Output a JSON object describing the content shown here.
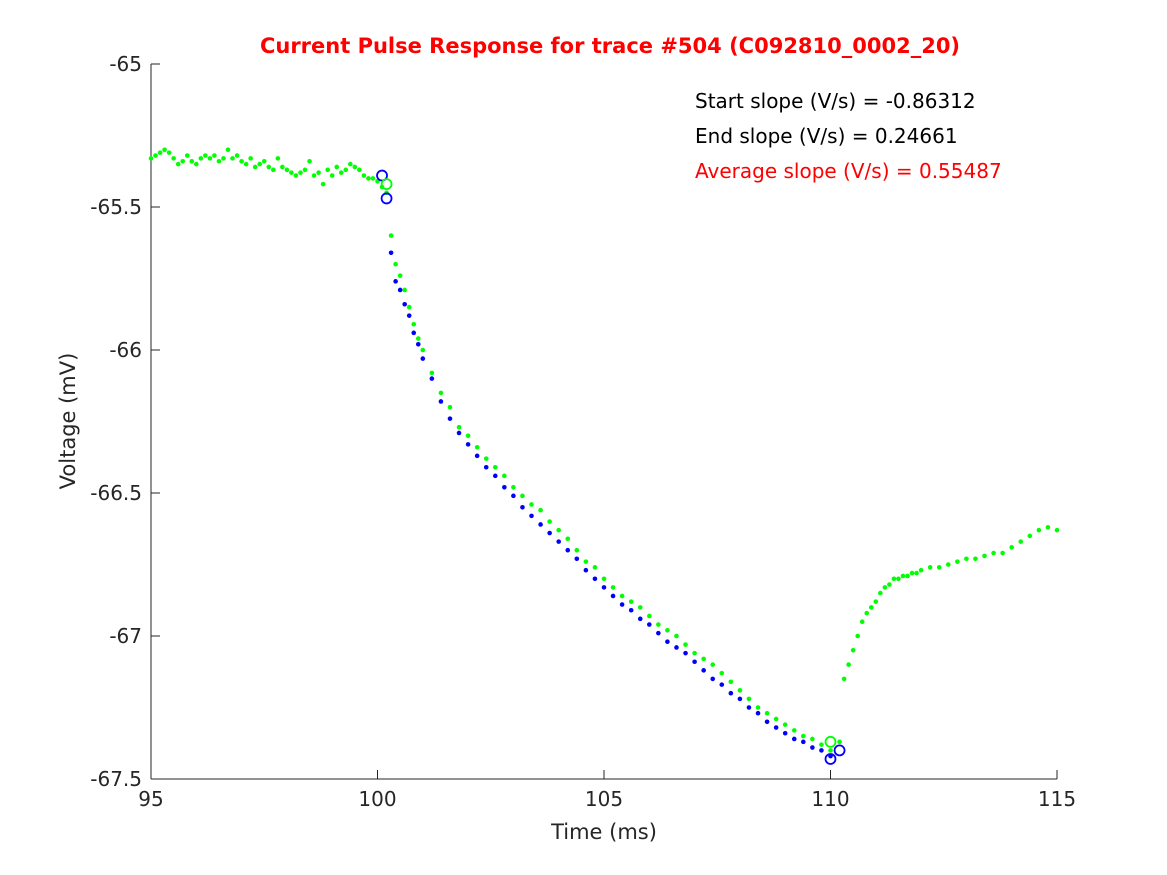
{
  "chart_data": {
    "type": "scatter",
    "title": "Current Pulse Response for trace #504 (C092810_0002_20)",
    "xlabel": "Time (ms)",
    "ylabel": "Voltage (mV)",
    "xlim": [
      95,
      115
    ],
    "ylim": [
      -67.5,
      -65
    ],
    "xticks": [
      95,
      100,
      105,
      110,
      115
    ],
    "yticks": [
      -65,
      -65.5,
      -66,
      -66.5,
      -67,
      -67.5
    ],
    "xtick_labels": [
      "95",
      "100",
      "105",
      "110",
      "115"
    ],
    "ytick_labels": [
      "-65",
      "-65.5",
      "-66",
      "-66.5",
      "-67",
      "-67.5"
    ],
    "grid": false,
    "colors": {
      "green": "#00ff00",
      "blue": "#0000ff",
      "axis": "#262626",
      "title": "#ff0000",
      "annotation_black": "#000000",
      "annotation_red": "#ff0000"
    },
    "annotations": [
      {
        "text": "Start slope (V/s) = -0.86312",
        "color": "#000000"
      },
      {
        "text": "End slope (V/s) = 0.24661",
        "color": "#000000"
      },
      {
        "text": "Average slope (V/s) = 0.55487",
        "color": "#ff0000"
      }
    ],
    "series": [
      {
        "color": "#00ff00",
        "marker": "dot",
        "x": [
          95.0,
          95.1,
          95.2,
          95.3,
          95.4,
          95.5,
          95.6,
          95.7,
          95.8,
          95.9,
          96.0,
          96.1,
          96.2,
          96.3,
          96.4,
          96.5,
          96.6,
          96.7,
          96.8,
          96.9,
          97.0,
          97.1,
          97.2,
          97.3,
          97.4,
          97.5,
          97.6,
          97.7,
          97.8,
          97.9,
          98.0,
          98.1,
          98.2,
          98.3,
          98.4,
          98.5,
          98.6,
          98.7,
          98.8,
          98.9,
          99.0,
          99.1,
          99.2,
          99.3,
          99.4,
          99.5,
          99.6,
          99.7,
          99.8,
          99.9,
          100.0,
          100.1,
          100.2,
          100.3,
          100.4,
          100.5,
          100.6,
          100.7,
          100.8,
          100.9,
          101.0,
          101.2,
          101.4,
          101.6,
          101.8,
          102.0,
          102.2,
          102.4,
          102.6,
          102.8,
          103.0,
          103.2,
          103.4,
          103.6,
          103.8,
          104.0,
          104.2,
          104.4,
          104.6,
          104.8,
          105.0,
          105.2,
          105.4,
          105.6,
          105.8,
          106.0,
          106.2,
          106.4,
          106.6,
          106.8,
          107.0,
          107.2,
          107.4,
          107.6,
          107.8,
          108.0,
          108.2,
          108.4,
          108.6,
          108.8,
          109.0,
          109.2,
          109.4,
          109.6,
          109.8,
          110.0,
          110.2,
          110.3,
          110.4,
          110.5,
          110.6,
          110.7,
          110.8,
          110.9,
          111.0,
          111.1,
          111.2,
          111.3,
          111.4,
          111.5,
          111.6,
          111.7,
          111.8,
          111.9,
          112.0,
          112.2,
          112.4,
          112.6,
          112.8,
          113.0,
          113.2,
          113.4,
          113.6,
          113.8,
          114.0,
          114.2,
          114.4,
          114.6,
          114.8,
          115.0
        ],
        "y": [
          -65.33,
          -65.32,
          -65.31,
          -65.3,
          -65.31,
          -65.33,
          -65.35,
          -65.34,
          -65.32,
          -65.34,
          -65.35,
          -65.33,
          -65.32,
          -65.33,
          -65.32,
          -65.34,
          -65.33,
          -65.3,
          -65.33,
          -65.32,
          -65.34,
          -65.35,
          -65.33,
          -65.36,
          -65.35,
          -65.34,
          -65.36,
          -65.37,
          -65.33,
          -65.36,
          -65.37,
          -65.38,
          -65.39,
          -65.38,
          -65.37,
          -65.34,
          -65.39,
          -65.38,
          -65.42,
          -65.37,
          -65.39,
          -65.36,
          -65.38,
          -65.37,
          -65.35,
          -65.36,
          -65.37,
          -65.39,
          -65.4,
          -65.4,
          -65.41,
          -65.43,
          -65.45,
          -65.6,
          -65.7,
          -65.74,
          -65.79,
          -65.85,
          -65.91,
          -65.96,
          -66.0,
          -66.08,
          -66.15,
          -66.2,
          -66.27,
          -66.3,
          -66.34,
          -66.38,
          -66.41,
          -66.44,
          -66.48,
          -66.51,
          -66.54,
          -66.56,
          -66.6,
          -66.63,
          -66.66,
          -66.7,
          -66.74,
          -66.76,
          -66.8,
          -66.83,
          -66.86,
          -66.88,
          -66.9,
          -66.93,
          -66.96,
          -66.98,
          -67.0,
          -67.03,
          -67.06,
          -67.08,
          -67.1,
          -67.13,
          -67.16,
          -67.19,
          -67.22,
          -67.25,
          -67.27,
          -67.29,
          -67.31,
          -67.33,
          -67.35,
          -67.36,
          -67.38,
          -67.4,
          -67.37,
          -67.15,
          -67.1,
          -67.05,
          -67.0,
          -66.95,
          -66.92,
          -66.9,
          -66.88,
          -66.85,
          -66.83,
          -66.82,
          -66.8,
          -66.8,
          -66.79,
          -66.79,
          -66.78,
          -66.78,
          -66.77,
          -66.76,
          -66.76,
          -66.75,
          -66.74,
          -66.73,
          -66.73,
          -66.72,
          -66.71,
          -66.71,
          -66.69,
          -66.67,
          -66.65,
          -66.63,
          -66.62,
          -66.63
        ]
      },
      {
        "color": "#0000ff",
        "marker": "dot",
        "x": [
          100.3,
          100.4,
          100.5,
          100.6,
          100.7,
          100.8,
          100.9,
          101.0,
          101.2,
          101.4,
          101.6,
          101.8,
          102.0,
          102.2,
          102.4,
          102.6,
          102.8,
          103.0,
          103.2,
          103.4,
          103.6,
          103.8,
          104.0,
          104.2,
          104.4,
          104.6,
          104.8,
          105.0,
          105.2,
          105.4,
          105.6,
          105.8,
          106.0,
          106.2,
          106.4,
          106.6,
          106.8,
          107.0,
          107.2,
          107.4,
          107.6,
          107.8,
          108.0,
          108.2,
          108.4,
          108.6,
          108.8,
          109.0,
          109.2,
          109.4,
          109.6,
          109.8,
          110.0
        ],
        "y": [
          -65.66,
          -65.76,
          -65.79,
          -65.84,
          -65.88,
          -65.94,
          -65.98,
          -66.03,
          -66.1,
          -66.18,
          -66.24,
          -66.29,
          -66.33,
          -66.37,
          -66.41,
          -66.44,
          -66.48,
          -66.51,
          -66.55,
          -66.58,
          -66.61,
          -66.64,
          -66.67,
          -66.7,
          -66.73,
          -66.77,
          -66.8,
          -66.83,
          -66.86,
          -66.89,
          -66.91,
          -66.94,
          -66.96,
          -66.99,
          -67.02,
          -67.04,
          -67.06,
          -67.09,
          -67.12,
          -67.15,
          -67.17,
          -67.2,
          -67.22,
          -67.25,
          -67.27,
          -67.3,
          -67.32,
          -67.34,
          -67.36,
          -67.37,
          -67.39,
          -67.4,
          -67.42
        ]
      }
    ],
    "markers": [
      {
        "shape": "circle",
        "color": "#0000ff",
        "x": 100.1,
        "y": -65.39
      },
      {
        "shape": "circle",
        "color": "#0000ff",
        "x": 100.2,
        "y": -65.47
      },
      {
        "shape": "circle",
        "color": "#00ff00",
        "x": 100.2,
        "y": -65.42
      },
      {
        "shape": "circle",
        "color": "#00ff00",
        "x": 110.0,
        "y": -67.37
      },
      {
        "shape": "circle",
        "color": "#0000ff",
        "x": 110.0,
        "y": -67.43
      },
      {
        "shape": "circle",
        "color": "#0000ff",
        "x": 110.2,
        "y": -67.4
      }
    ]
  }
}
